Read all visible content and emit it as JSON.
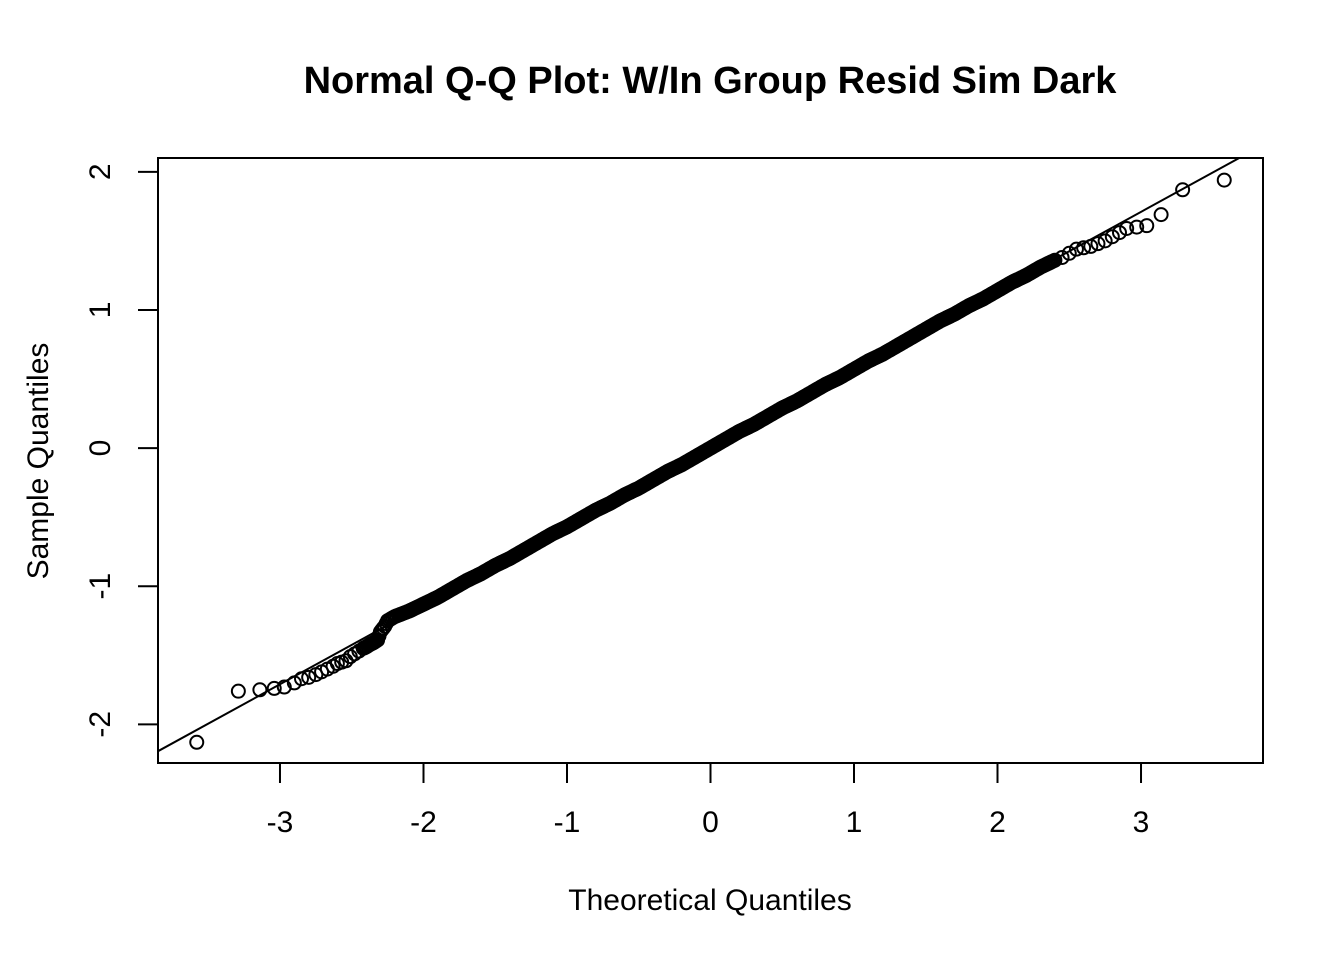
{
  "chart_data": {
    "type": "scatter",
    "title": "Normal Q-Q Plot: W/In Group Resid Sim Dark",
    "xlabel": "Theoretical Quantiles",
    "ylabel": "Sample Quantiles",
    "xlim": [
      -3.85,
      3.85
    ],
    "ylim": [
      -2.28,
      2.1
    ],
    "x_ticks": [
      -3,
      -2,
      -1,
      0,
      1,
      2,
      3
    ],
    "x_tick_labels": [
      "-3",
      "-2",
      "-1",
      "0",
      "1",
      "2",
      "3"
    ],
    "y_ticks": [
      -2,
      -1,
      0,
      1,
      2
    ],
    "y_tick_labels": [
      "-2",
      "-1",
      "0",
      "1",
      "2"
    ],
    "grid": false,
    "legend": "none",
    "marker": "open-circle",
    "reference_line": {
      "slope": 0.57,
      "intercept": 0.0
    },
    "series": [
      {
        "x": [
          -3.58,
          -3.29,
          -3.14,
          -3.04,
          -2.97,
          -2.9,
          -2.85,
          -2.8,
          -2.75,
          -2.71,
          -2.67,
          -2.63,
          -2.6,
          -2.57,
          -2.54,
          -2.51,
          -2.48,
          -2.45,
          -2.42,
          -2.4,
          -2.37,
          -2.35,
          -2.32,
          -2.3,
          -2.27,
          -2.25,
          -2.2,
          -2.15,
          -2.1,
          -2.0,
          -1.9,
          -1.8,
          -1.7,
          -1.6,
          -1.5,
          -1.4,
          -1.3,
          -1.2,
          -1.1,
          -1.0,
          -0.9,
          -0.8,
          -0.7,
          -0.6,
          -0.5,
          -0.4,
          -0.3,
          -0.2,
          -0.1,
          0.0,
          0.1,
          0.2,
          0.3,
          0.4,
          0.5,
          0.6,
          0.7,
          0.8,
          0.9,
          1.0,
          1.1,
          1.2,
          1.3,
          1.4,
          1.5,
          1.6,
          1.7,
          1.8,
          1.9,
          2.0,
          2.1,
          2.2,
          2.3,
          2.4,
          2.45,
          2.5,
          2.55,
          2.6,
          2.65,
          2.7,
          2.75,
          2.8,
          2.85,
          2.9,
          2.97,
          3.04,
          3.14,
          3.29,
          3.58
        ],
        "y": [
          -2.13,
          -1.76,
          -1.75,
          -1.74,
          -1.73,
          -1.7,
          -1.67,
          -1.66,
          -1.64,
          -1.62,
          -1.6,
          -1.58,
          -1.56,
          -1.55,
          -1.54,
          -1.51,
          -1.49,
          -1.47,
          -1.45,
          -1.44,
          -1.42,
          -1.41,
          -1.39,
          -1.33,
          -1.29,
          -1.25,
          -1.22,
          -1.2,
          -1.18,
          -1.13,
          -1.08,
          -1.02,
          -0.96,
          -0.91,
          -0.85,
          -0.8,
          -0.74,
          -0.68,
          -0.62,
          -0.57,
          -0.51,
          -0.45,
          -0.4,
          -0.34,
          -0.29,
          -0.23,
          -0.17,
          -0.12,
          -0.06,
          0.0,
          0.06,
          0.12,
          0.17,
          0.23,
          0.29,
          0.34,
          0.4,
          0.46,
          0.51,
          0.57,
          0.63,
          0.68,
          0.74,
          0.8,
          0.86,
          0.92,
          0.97,
          1.03,
          1.08,
          1.14,
          1.2,
          1.25,
          1.31,
          1.36,
          1.38,
          1.41,
          1.44,
          1.45,
          1.46,
          1.48,
          1.5,
          1.53,
          1.56,
          1.59,
          1.6,
          1.61,
          1.69,
          1.87,
          1.94
        ]
      }
    ]
  }
}
